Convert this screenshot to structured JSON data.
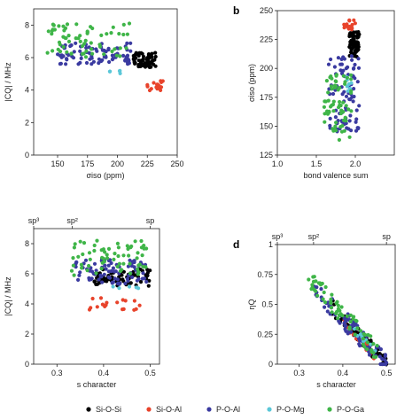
{
  "legend": [
    {
      "name": "Si-O-Si",
      "color": "#000000"
    },
    {
      "name": "Si-O-Al",
      "color": "#e8432b"
    },
    {
      "name": "P-O-Al",
      "color": "#3a3aa0"
    },
    {
      "name": "P-O-Mg",
      "color": "#5bc7d8"
    },
    {
      "name": "P-O-Ga",
      "color": "#3fb548"
    }
  ],
  "chart_data": [
    {
      "type": "scatter",
      "panel_label": "",
      "xlabel": "σiso (ppm)",
      "ylabel": "|CQ| / MHz",
      "xlim": [
        130,
        250
      ],
      "ylim": [
        0,
        9
      ],
      "xticks": [
        "150",
        "175",
        "200",
        "225",
        "250"
      ],
      "yticks": [
        "0",
        "2",
        "4",
        "6",
        "8"
      ],
      "series": [
        {
          "name": "Si-O-Si",
          "clusters": [
            {
              "x": [
                213,
                232
              ],
              "y": [
                5.4,
                6.3
              ],
              "n": 70
            }
          ]
        },
        {
          "name": "Si-O-Al",
          "clusters": [
            {
              "x": [
                225,
                238
              ],
              "y": [
                3.9,
                4.6
              ],
              "n": 18
            }
          ]
        },
        {
          "name": "P-O-Al",
          "clusters": [
            {
              "x": [
                150,
                212
              ],
              "y": [
                5.6,
                6.9
              ],
              "n": 85
            }
          ]
        },
        {
          "name": "P-O-Mg",
          "clusters": [
            {
              "x": [
                193,
                203
              ],
              "y": [
                5.0,
                5.2
              ],
              "n": 5
            }
          ]
        },
        {
          "name": "P-O-Ga",
          "clusters": [
            {
              "x": [
                140,
                210
              ],
              "y": [
                5.9,
                8.1
              ],
              "n": 65
            }
          ]
        }
      ]
    },
    {
      "type": "scatter",
      "panel_label": "b",
      "xlabel": "bond valence sum",
      "ylabel": "σiso (ppm)",
      "xlim": [
        1.0,
        2.5
      ],
      "ylim": [
        125,
        250
      ],
      "xticks": [
        "1.0",
        "1.5",
        "2.0"
      ],
      "yticks": [
        "125",
        "150",
        "175",
        "200",
        "225",
        "250"
      ],
      "series": [
        {
          "name": "Si-O-Si",
          "clusters": [
            {
              "x": [
                1.92,
                2.05
              ],
              "y": [
                210,
                232
              ],
              "n": 70
            }
          ]
        },
        {
          "name": "Si-O-Al",
          "clusters": [
            {
              "x": [
                1.85,
                2.0
              ],
              "y": [
                232,
                242
              ],
              "n": 18
            }
          ]
        },
        {
          "name": "P-O-Al",
          "clusters": [
            {
              "x": [
                1.65,
                2.05
              ],
              "y": [
                145,
                212
              ],
              "n": 85
            }
          ]
        },
        {
          "name": "P-O-Mg",
          "clusters": [
            {
              "x": [
                1.85,
                1.95
              ],
              "y": [
                180,
                200
              ],
              "n": 8
            }
          ]
        },
        {
          "name": "P-O-Ga",
          "clusters": [
            {
              "x": [
                1.6,
                1.95
              ],
              "y": [
                138,
                195
              ],
              "n": 65
            }
          ]
        }
      ]
    },
    {
      "type": "scatter",
      "panel_label": "",
      "xlabel": "s character",
      "ylabel": "|CQ| / MHz",
      "xlim": [
        0.25,
        0.52
      ],
      "ylim": [
        0,
        9
      ],
      "xticks": [
        "0.3",
        "0.4",
        "0.5"
      ],
      "yticks": [
        "0",
        "2",
        "4",
        "6",
        "8"
      ],
      "top_ticks": [
        {
          "label": "sp³",
          "x": 0.25
        },
        {
          "label": "sp²",
          "x": 0.333
        },
        {
          "label": "sp",
          "x": 0.5
        }
      ],
      "series": [
        {
          "name": "Si-O-Si",
          "clusters": [
            {
              "x": [
                0.38,
                0.5
              ],
              "y": [
                5.2,
                6.3
              ],
              "n": 70
            }
          ]
        },
        {
          "name": "Si-O-Al",
          "clusters": [
            {
              "x": [
                0.36,
                0.48
              ],
              "y": [
                3.6,
                4.4
              ],
              "n": 18
            }
          ]
        },
        {
          "name": "P-O-Al",
          "clusters": [
            {
              "x": [
                0.34,
                0.5
              ],
              "y": [
                5.3,
                7.0
              ],
              "n": 85
            }
          ]
        },
        {
          "name": "P-O-Mg",
          "clusters": [
            {
              "x": [
                0.42,
                0.48
              ],
              "y": [
                5.0,
                5.3
              ],
              "n": 5
            }
          ]
        },
        {
          "name": "P-O-Ga",
          "clusters": [
            {
              "x": [
                0.33,
                0.5
              ],
              "y": [
                5.9,
                8.2
              ],
              "n": 65
            }
          ]
        }
      ]
    },
    {
      "type": "scatter",
      "panel_label": "d",
      "xlabel": "s character",
      "ylabel": "ηQ",
      "xlim": [
        0.25,
        0.52
      ],
      "ylim": [
        0,
        1
      ],
      "xticks": [
        "0.3",
        "0.4",
        "0.5"
      ],
      "yticks": [
        "0",
        "0.25",
        "0.5",
        "0.75",
        "1"
      ],
      "top_ticks": [
        {
          "label": "sp³",
          "x": 0.25
        },
        {
          "label": "sp²",
          "x": 0.333
        },
        {
          "label": "sp",
          "x": 0.5
        }
      ],
      "series": [
        {
          "name": "Si-O-Si",
          "clusters": [
            {
              "x": [
                0.37,
                0.5
              ],
              "y": [
                0.0,
                0.5
              ],
              "n": 70,
              "trend": true
            }
          ]
        },
        {
          "name": "Si-O-Al",
          "clusters": [
            {
              "x": [
                0.4,
                0.48
              ],
              "y": [
                0.05,
                0.35
              ],
              "n": 18,
              "trend": true
            }
          ]
        },
        {
          "name": "P-O-Al",
          "clusters": [
            {
              "x": [
                0.33,
                0.5
              ],
              "y": [
                0.0,
                0.65
              ],
              "n": 85,
              "trend": true
            }
          ]
        },
        {
          "name": "P-O-Mg",
          "clusters": [
            {
              "x": [
                0.42,
                0.48
              ],
              "y": [
                0.1,
                0.3
              ],
              "n": 8,
              "trend": true
            }
          ]
        },
        {
          "name": "P-O-Ga",
          "clusters": [
            {
              "x": [
                0.32,
                0.48
              ],
              "y": [
                0.1,
                0.73
              ],
              "n": 65,
              "trend": true
            }
          ]
        }
      ]
    }
  ]
}
